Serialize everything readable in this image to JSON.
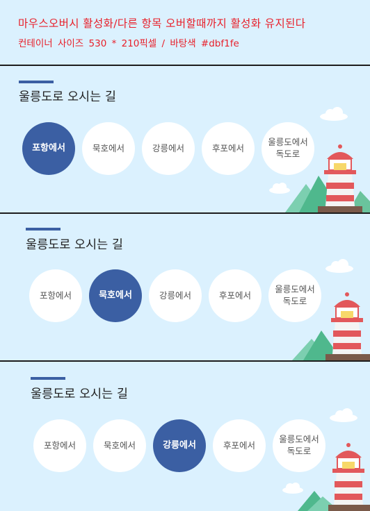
{
  "notes": {
    "line1": "마우스오버시 활성화/다른 항목 오버할때까지 활성화 유지된다",
    "line2": "컨테이너 사이즈  530 * 210픽셀   /    바탕색  #dbf1fe"
  },
  "colors": {
    "background": "#dbf1fe",
    "active": "#3b5fa3",
    "note_text": "#e8202a"
  },
  "panels": [
    {
      "title": "울릉도로 오시는 길",
      "active_index": 0,
      "tabs": [
        {
          "label": "포항에서"
        },
        {
          "label": "묵호에서"
        },
        {
          "label": "강릉에서"
        },
        {
          "label": "후포에서"
        },
        {
          "label": "울릉도에서\n독도로"
        }
      ]
    },
    {
      "title": "울릉도로 오시는 길",
      "active_index": 1,
      "tabs": [
        {
          "label": "포항에서"
        },
        {
          "label": "묵호에서"
        },
        {
          "label": "강릉에서"
        },
        {
          "label": "후포에서"
        },
        {
          "label": "울릉도에서\n독도로"
        }
      ]
    },
    {
      "title": "울릉도로 오시는 길",
      "active_index": 2,
      "tabs": [
        {
          "label": "포항에서"
        },
        {
          "label": "묵호에서"
        },
        {
          "label": "강릉에서"
        },
        {
          "label": "후포에서"
        },
        {
          "label": "울릉도에서\n독도로"
        }
      ]
    }
  ]
}
